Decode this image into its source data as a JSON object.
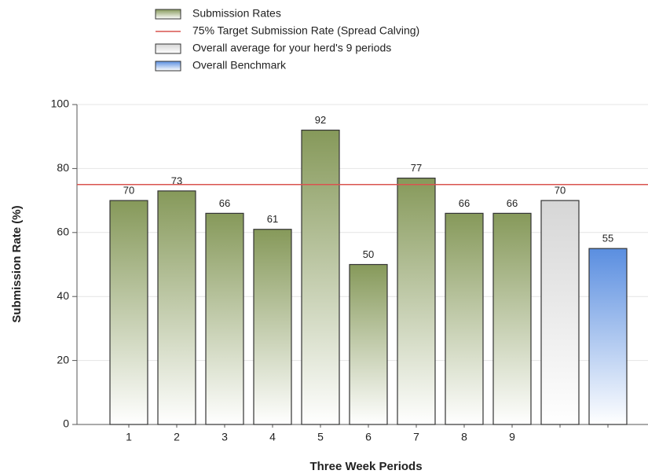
{
  "chart_data": {
    "type": "bar",
    "categories": [
      "1",
      "2",
      "3",
      "4",
      "5",
      "6",
      "7",
      "8",
      "9",
      null,
      null
    ],
    "series": [
      {
        "name": "Submission Rates",
        "color": "#86995a",
        "values": [
          70,
          73,
          66,
          61,
          92,
          50,
          77,
          66,
          66,
          null,
          null
        ]
      },
      {
        "name": "Overall average for your herd's 9 periods",
        "color": "#d6d6d6",
        "values": [
          null,
          null,
          null,
          null,
          null,
          null,
          null,
          null,
          null,
          70,
          null
        ]
      },
      {
        "name": "Overall Benchmark",
        "color": "#5a8ee0",
        "values": [
          null,
          null,
          null,
          null,
          null,
          null,
          null,
          null,
          null,
          null,
          55
        ]
      }
    ],
    "target": {
      "name": "75% Target Submission Rate (Spread Calving)",
      "value": 75,
      "color": "#d9534f"
    },
    "x_label": "Three Week Periods",
    "y_label": "Submission Rate (%)",
    "ylim": [
      0,
      100
    ],
    "yticks": [
      0,
      20,
      40,
      60,
      80,
      100
    ],
    "grid": true
  }
}
